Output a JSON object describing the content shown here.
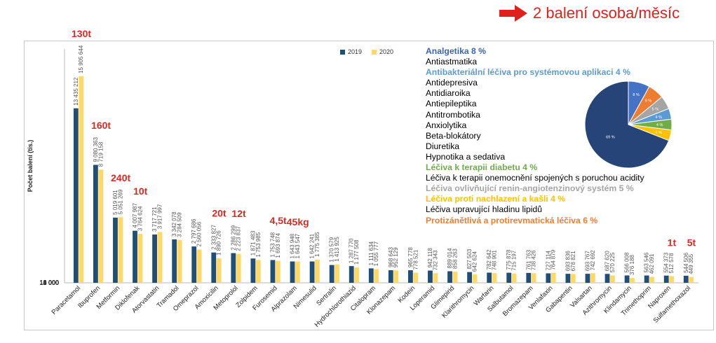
{
  "headline": {
    "text": "2 balení osoba/měsíc",
    "color": "#e0201d"
  },
  "annotations": [
    {
      "text": "130t",
      "category": "Paracetamol"
    },
    {
      "text": "160t",
      "category": "Ibuprofen"
    },
    {
      "text": "240t",
      "category": "Metformin"
    },
    {
      "text": "10t",
      "category": "Diklofenak"
    },
    {
      "text": "20t",
      "category": "Amoxicilin"
    },
    {
      "text": "12t",
      "category": "Metoprolol"
    },
    {
      "text": "4,5t",
      "category": "Furosemid"
    },
    {
      "text": "45kg",
      "category": "Alprazolam"
    },
    {
      "text": "1t",
      "category": "Naproxen"
    },
    {
      "text": "5t",
      "category": "Sulfamethoxazol"
    }
  ],
  "categories_list": [
    {
      "text": "Analgetika 8 %",
      "color": "#3a66ad",
      "bold": true
    },
    {
      "text": "Antiastmatika",
      "color": "#000000",
      "bold": false
    },
    {
      "text": "Antibakteriální léčiva pro systémovou aplikaci 4 %",
      "color": "#5b9bd5",
      "bold": true
    },
    {
      "text": "Antidepresiva",
      "color": "#000000",
      "bold": false
    },
    {
      "text": "Antidiaroika",
      "color": "#000000",
      "bold": false
    },
    {
      "text": "Antiepileptika",
      "color": "#000000",
      "bold": false
    },
    {
      "text": "Antitrombotika",
      "color": "#000000",
      "bold": false
    },
    {
      "text": "Anxiolytika",
      "color": "#000000",
      "bold": false
    },
    {
      "text": "Beta-blokátory",
      "color": "#000000",
      "bold": false
    },
    {
      "text": "Diuretika",
      "color": "#000000",
      "bold": false
    },
    {
      "text": "Hypnotika a sedativa",
      "color": "#000000",
      "bold": false
    },
    {
      "text": "Léčiva k terapii diabetu 4 %",
      "color": "#70ad47",
      "bold": true
    },
    {
      "text": "Léčiva k terapii onemocnění spojených s poruchou acidity",
      "color": "#000000",
      "bold": false
    },
    {
      "text": "Léčiva ovlivňující renin-angiotenzinový systém 5 %",
      "color": "#a5a5a5",
      "bold": true
    },
    {
      "text": "Léčiva proti nachlazení a kašli 4 %",
      "color": "#ffc000",
      "bold": true
    },
    {
      "text": "Léčiva upravující hladinu lipidů",
      "color": "#000000",
      "bold": false
    },
    {
      "text": "Protizánětlivá a protirevmatická léčiva 6 %",
      "color": "#ed7d31",
      "bold": true
    }
  ],
  "chart_data": [
    {
      "type": "bar",
      "ylabel": "Počet balení (tis.)",
      "ylim": [
        0,
        18000
      ],
      "yticks": [
        "0",
        "2 000",
        "4 000",
        "6 000",
        "8 000",
        "10 000",
        "12 000",
        "14 000",
        "16 000",
        "18 000"
      ],
      "grid": false,
      "legend_placement": "top-center",
      "categories": [
        "Paracetamol",
        "Ibuprofen",
        "Metformin",
        "Diklofenak",
        "Atorvastatin",
        "Tramadol",
        "Omeprazol",
        "Amoxicilin",
        "Metoprolol",
        "Zolpidem",
        "Furosemid",
        "Alprazolam",
        "Nimesulid",
        "Sertralin",
        "Hydrochlorothiazid",
        "Citalopram",
        "Klonazepam",
        "Kodein",
        "Loperamid",
        "Glimepirid",
        "Klarithromycin",
        "Warfarin",
        "Salbutamol",
        "Bromazepam",
        "Venlafaxin",
        "Gabapentin",
        "Valsartan",
        "Azithromycin",
        "Klindamycin",
        "Trimethoprim",
        "Naproxen",
        "Sulfamethoxazol"
      ],
      "series": [
        {
          "name": "2019",
          "color": "#1f4e79",
          "values": [
            13435212,
            9080363,
            5019601,
            4007987,
            3717721,
            3342078,
            2797686,
            2333827,
            2286299,
            1871483,
            1753748,
            1643948,
            1642241,
            1370579,
            1287770,
            1111634,
            968643,
            965778,
            942118,
            889014,
            827503,
            782642,
            775878,
            761763,
            727114,
            693836,
            693767,
            687620,
            566008,
            563546,
            554373,
            544506
          ],
          "labels": [
            "13 435 212",
            "9 080 363",
            "5 019 601",
            "4 007 987",
            "3 717 721",
            "3 342 078",
            "2 797 686",
            "2 333 827",
            "2 286 299",
            "1 871 483",
            "1 753 748",
            "1 643 948",
            "1 642 241",
            "1 370 579",
            "1 287 770",
            "1 111 634",
            "968 643",
            "965 778",
            "942 118",
            "889 014",
            "827 503",
            "782 642",
            "775 878",
            "761 763",
            "727 114",
            "693 836",
            "693 767",
            "687 620",
            "566 008",
            "563 546",
            "554 373",
            "544 506"
          ]
        },
        {
          "name": "2020",
          "color": "#ffd966",
          "values": [
            15905644,
            8719158,
            5051269,
            3764624,
            3917997,
            3284509,
            2560056,
            1890726,
            2223837,
            1753985,
            1693874,
            1643547,
            1775385,
            1413925,
            1177508,
            1055777,
            952129,
            778521,
            732343,
            858263,
            642624,
            748901,
            715197,
            738426,
            764879,
            678821,
            742692,
            570225,
            376188,
            462091,
            512578,
            449355
          ],
          "labels": [
            "15 905 644",
            "8 719 158",
            "5 051 269",
            "3 764 624",
            "3 917 997",
            "3 284 509",
            "2 560 056",
            "1 890 726",
            "2 223 837",
            "1 753 985",
            "1 693 874",
            "1 643 547",
            "1 775 385",
            "1 413 925",
            "1 177 508",
            "1 055 777",
            "952 129",
            "778 521",
            "732 343",
            "858 263",
            "642 624",
            "748 901",
            "715 197",
            "738 426",
            "764 879",
            "678 821",
            "742 692",
            "570 225",
            "376 188",
            "462 091",
            "512 578",
            "449 355"
          ]
        }
      ]
    },
    {
      "type": "pie",
      "slices": [
        {
          "label": "8 %",
          "value": 8,
          "color": "#4472c4"
        },
        {
          "label": "6 %",
          "value": 6,
          "color": "#ed7d31"
        },
        {
          "label": "5 %",
          "value": 5,
          "color": "#a5a5a5"
        },
        {
          "label": "4 %",
          "value": 4,
          "color": "#5b9bd5"
        },
        {
          "label": "4 %",
          "value": 4,
          "color": "#70ad47"
        },
        {
          "label": "4 %",
          "value": 4,
          "color": "#ffc000"
        },
        {
          "label": "69 %",
          "value": 69,
          "color": "#264478"
        }
      ]
    }
  ]
}
